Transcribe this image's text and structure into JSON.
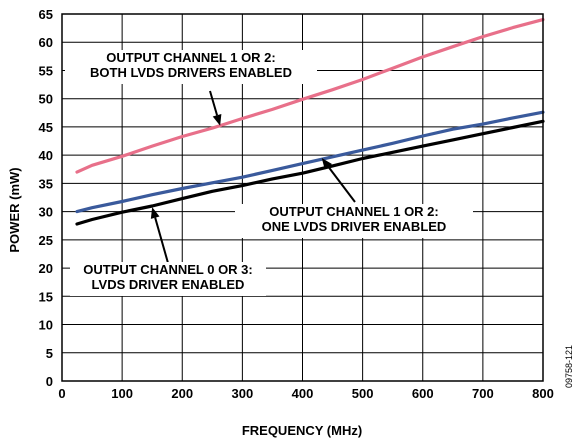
{
  "chart_data": {
    "type": "line",
    "title": "",
    "xlabel": "FREQUENCY (MHz)",
    "ylabel": "POWER (mW)",
    "xlim": [
      0,
      800
    ],
    "ylim": [
      0,
      65
    ],
    "xticks": [
      0,
      100,
      200,
      300,
      400,
      500,
      600,
      700,
      800
    ],
    "yticks": [
      0,
      5,
      10,
      15,
      20,
      25,
      30,
      35,
      40,
      45,
      50,
      55,
      60,
      65
    ],
    "grid": true,
    "legend": "none",
    "figure_number": "09758-121",
    "series": [
      {
        "id": "both-lvds",
        "color": "#e8708a",
        "x": [
          25,
          50,
          100,
          150,
          200,
          250,
          300,
          350,
          400,
          450,
          500,
          550,
          600,
          650,
          700,
          750,
          800
        ],
        "y": [
          37.0,
          38.2,
          39.8,
          41.6,
          43.3,
          44.8,
          46.5,
          48.1,
          49.9,
          51.6,
          53.4,
          55.4,
          57.4,
          59.2,
          61.0,
          62.6,
          64.0
        ]
      },
      {
        "id": "one-lvds",
        "color": "#3a5a9c",
        "x": [
          25,
          50,
          100,
          150,
          200,
          250,
          300,
          350,
          400,
          450,
          500,
          550,
          600,
          650,
          700,
          750,
          800
        ],
        "y": [
          30.0,
          30.7,
          31.8,
          33.0,
          34.1,
          35.1,
          36.1,
          37.3,
          38.5,
          39.7,
          40.9,
          42.1,
          43.4,
          44.6,
          45.5,
          46.6,
          47.6
        ]
      },
      {
        "id": "ch0-3-lvds",
        "color": "#000000",
        "x": [
          25,
          50,
          100,
          150,
          200,
          250,
          300,
          350,
          400,
          450,
          500,
          550,
          600,
          650,
          700,
          750,
          800
        ],
        "y": [
          27.8,
          28.6,
          29.9,
          31.0,
          32.3,
          33.6,
          34.6,
          35.8,
          36.8,
          38.1,
          39.4,
          40.5,
          41.6,
          42.7,
          43.8,
          44.9,
          46.0
        ]
      }
    ],
    "annotations": [
      {
        "id": "both",
        "lines": [
          "OUTPUT CHANNEL 1 OR 2:",
          "BOTH LVDS DRIVERS ENABLED"
        ],
        "pointer": {
          "x": 263,
          "y": 45.2
        }
      },
      {
        "id": "one",
        "lines": [
          "OUTPUT CHANNEL 1 OR 2:",
          "ONE LVDS DRIVER ENABLED"
        ],
        "pointer": {
          "x": 432,
          "y": 39.5
        }
      },
      {
        "id": "ch03",
        "lines": [
          "OUTPUT CHANNEL 0 OR 3:",
          "LVDS DRIVER ENABLED"
        ],
        "pointer": {
          "x": 150,
          "y": 30.8
        }
      }
    ]
  }
}
